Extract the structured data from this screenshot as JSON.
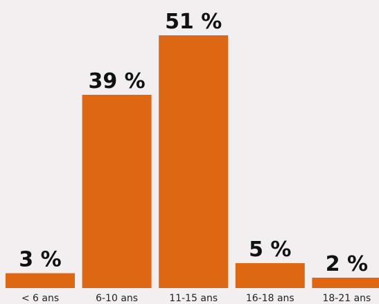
{
  "chart_data": {
    "type": "bar",
    "categories": [
      "< 6 ans",
      "6-10 ans",
      "11-15 ans",
      "16-18 ans",
      "18-21 ans"
    ],
    "values": [
      3,
      39,
      51,
      5,
      2
    ],
    "value_labels": [
      "3 %",
      "39 %",
      "51 %",
      "5 %",
      "2 %"
    ],
    "unit": "%",
    "ylim": [
      0,
      51
    ],
    "grid": false,
    "legend": "none",
    "bar_color": "#de6713",
    "background_color": "#f3eff0"
  }
}
